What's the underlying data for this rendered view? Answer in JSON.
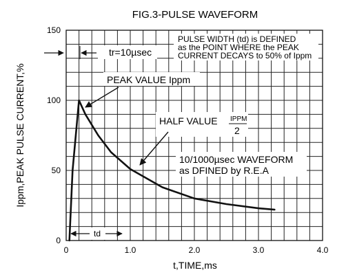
{
  "chart_data": {
    "type": "line",
    "title": "FIG.3-PULSE WAVEFORM",
    "xlabel": "t,TIME,ms",
    "ylabel": "Ippm,PEAK PULSE CURRENT,%",
    "xlim": [
      0,
      4.0
    ],
    "ylim": [
      0,
      150
    ],
    "x_ticks": [
      "0",
      "1.0",
      "2.0",
      "3.0",
      "4.0"
    ],
    "y_ticks": [
      "0",
      "50",
      "100",
      "150"
    ],
    "grid": true,
    "series": [
      {
        "x": [
          0.05,
          0.1,
          0.2,
          0.3,
          0.5,
          0.7,
          1.0,
          1.5,
          2.0,
          2.5,
          3.0,
          3.25
        ],
        "y": [
          0,
          50,
          100,
          90,
          75,
          63,
          51,
          38,
          30,
          26,
          23,
          22
        ]
      }
    ],
    "annotations": {
      "pulse_width_note": [
        "PULSE WIDTH (td) is DEFINED",
        "as the POINT WHERE the PEAK",
        "CURRENT DECAYS to 50% of Ippm"
      ],
      "tr_label": "tr=10µsec",
      "peak_label": "PEAK VALUE Ippm",
      "half_value_label": "HALF VALUE",
      "half_value_num": "IPPM",
      "half_value_den": "2",
      "waveform_label": [
        "10/1000µsec WAVEFORM",
        "as DFINED by R.E.A"
      ],
      "td_label": "td"
    }
  }
}
